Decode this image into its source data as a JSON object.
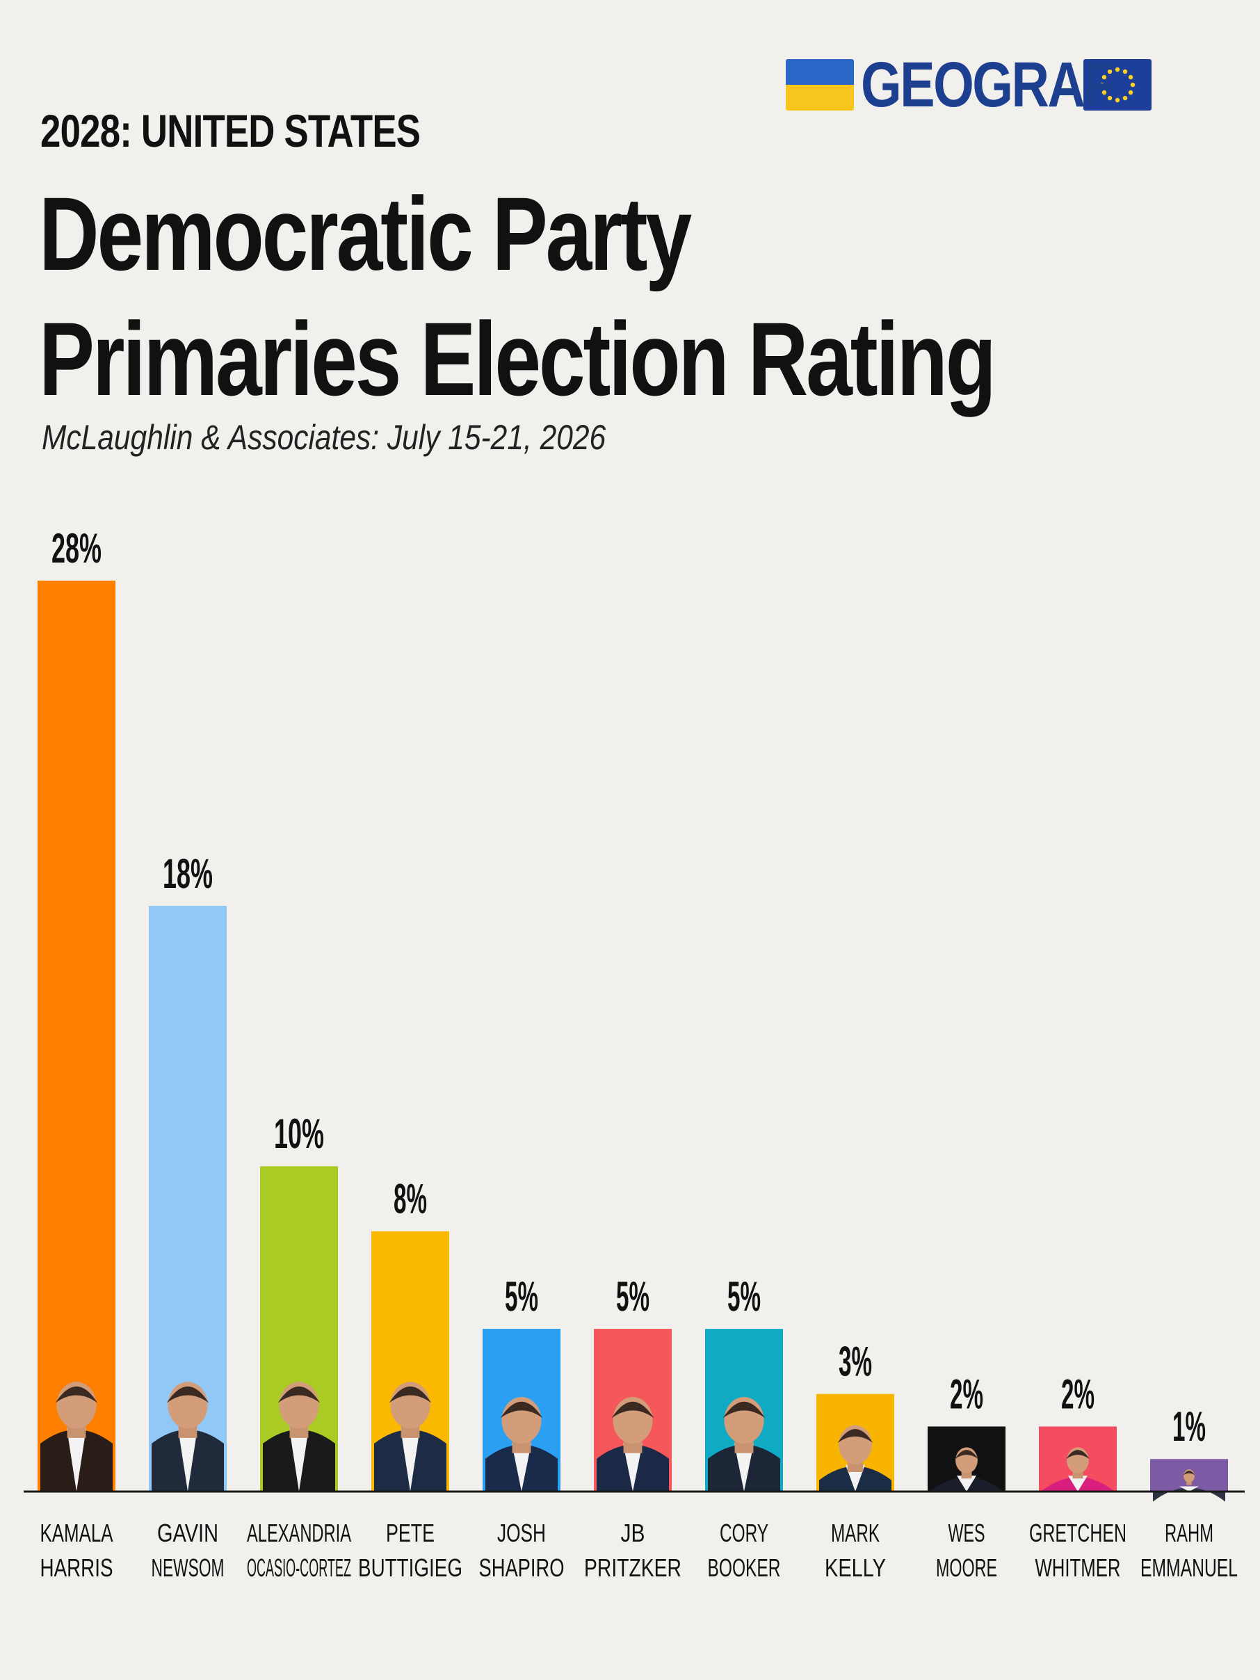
{
  "brand": {
    "name": "GEOGRAF"
  },
  "header": {
    "eyebrow": "2028: UNITED STATES",
    "title_line1": "Democratic Party",
    "title_line2": "Primaries Election Rating",
    "subtitle": "McLaughlin & Associates: July 15-21, 2026"
  },
  "icons": {
    "left_flag": "ukraine-flag-icon",
    "right_flag": "eu-flag-icon",
    "candidate_photo": "person-portrait-icon"
  },
  "chart_data": {
    "type": "bar",
    "title": "Democratic Party Primaries Election Rating",
    "subtitle": "McLaughlin & Associates: July 15-21, 2026",
    "unit": "%",
    "ylim": [
      0,
      28
    ],
    "grid": false,
    "categories": [
      [
        "KAMALA",
        "HARRIS"
      ],
      [
        "GAVIN",
        "NEWSOM"
      ],
      [
        "ALEXANDRIA",
        "OCASIO-CORTEZ"
      ],
      [
        "PETE",
        "BUTTIGIEG"
      ],
      [
        "JOSH",
        "SHAPIRO"
      ],
      [
        "JB",
        "PRITZKER"
      ],
      [
        "CORY",
        "BOOKER"
      ],
      [
        "MARK",
        "KELLY"
      ],
      [
        "WES",
        "MOORE"
      ],
      [
        "GRETCHEN",
        "WHITMER"
      ],
      [
        "RAHM",
        "EMMANUEL"
      ]
    ],
    "values": [
      28,
      18,
      10,
      8,
      5,
      5,
      5,
      3,
      2,
      2,
      1
    ],
    "value_labels": [
      "28%",
      "18%",
      "10%",
      "8%",
      "5%",
      "5%",
      "5%",
      "3%",
      "2%",
      "2%",
      "1%"
    ],
    "colors": [
      "#ff7f00",
      "#92c8f5",
      "#a9cb24",
      "#fbb800",
      "#2b9ff1",
      "#f6575a",
      "#10aac4",
      "#f9b400",
      "#111111",
      "#f44d62",
      "#7d5aa4"
    ],
    "photo_tints": [
      "#2a1d18",
      "#1f2a3b",
      "#1a1a1a",
      "#1d2b45",
      "#1a2a4a",
      "#1b2946",
      "#1d2636",
      "#1b2c45",
      "#1a1d2a",
      "#d81f7e",
      "#2e3342"
    ]
  }
}
